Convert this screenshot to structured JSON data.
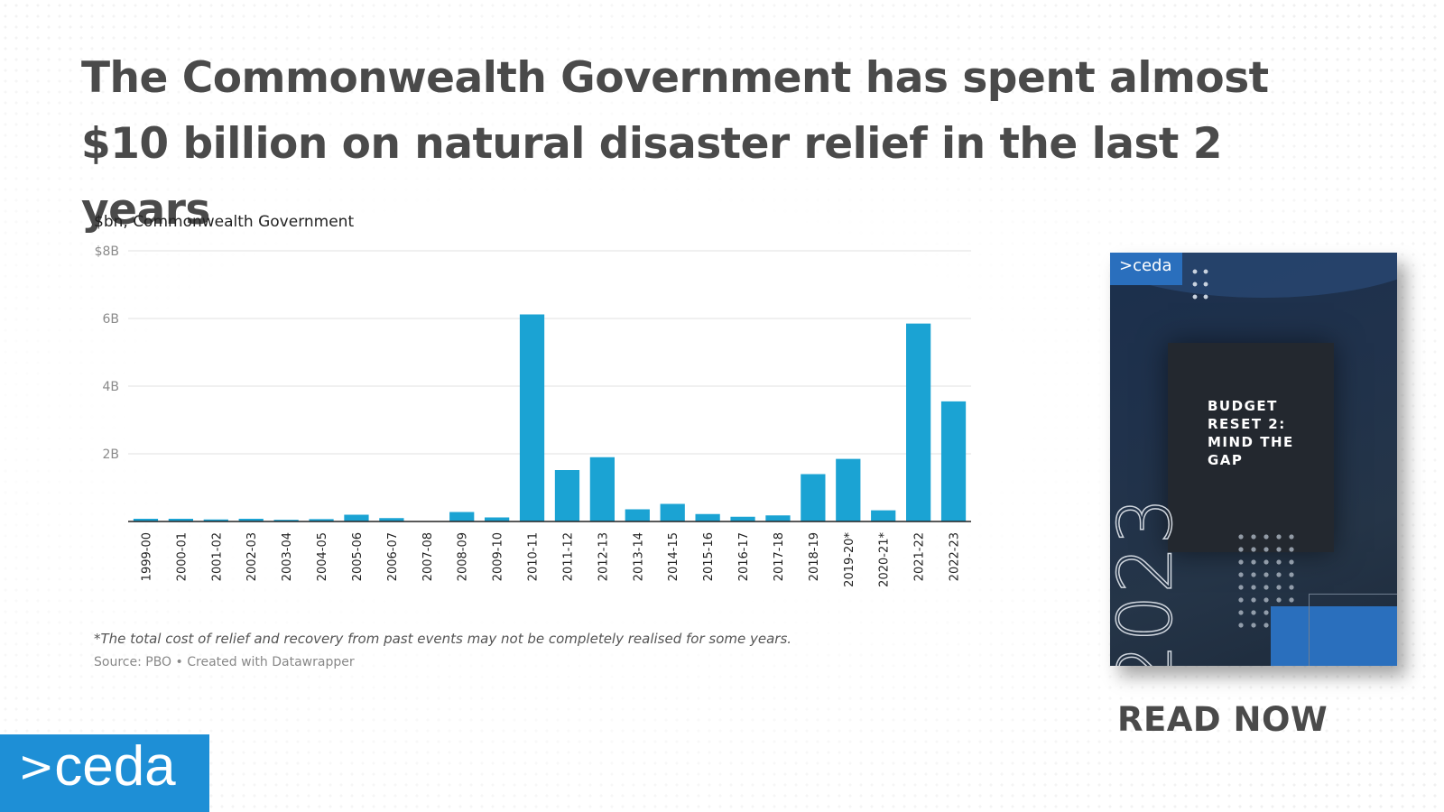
{
  "headline": {
    "line1": "The Commonwealth Government has spent almost",
    "line2": "$10 billion on natural disaster relief in the last 2 years"
  },
  "chart_data": {
    "type": "bar",
    "title": "The Commonwealth Government has spent almost $10 billion on natural disaster relief in the last 2 years",
    "subtitle": "$bn, Commonwealth Government",
    "xlabel": "",
    "ylabel": "$bn",
    "ylim": [
      0,
      8
    ],
    "yticks": [
      {
        "value": 8,
        "label": "$8B"
      },
      {
        "value": 6,
        "label": "6B"
      },
      {
        "value": 4,
        "label": "4B"
      },
      {
        "value": 2,
        "label": "2B"
      }
    ],
    "grid": true,
    "bar_color": "#1ba3d3",
    "categories": [
      "1999-00",
      "2000-01",
      "2001-02",
      "2002-03",
      "2003-04",
      "2004-05",
      "2005-06",
      "2006-07",
      "2007-08",
      "2008-09",
      "2009-10",
      "2010-11",
      "2011-12",
      "2012-13",
      "2013-14",
      "2014-15",
      "2015-16",
      "2016-17",
      "2017-18",
      "2018-19",
      "2019-20*",
      "2020-21*",
      "2021-22",
      "2022-23"
    ],
    "values": [
      0.08,
      0.08,
      0.06,
      0.08,
      0.05,
      0.07,
      0.2,
      0.1,
      0.0,
      0.28,
      0.12,
      6.12,
      1.52,
      1.9,
      0.36,
      0.52,
      0.22,
      0.14,
      0.18,
      1.4,
      1.85,
      0.33,
      5.85,
      3.55
    ],
    "note": "*The total cost of relief and recovery from past events may not be completely realised for some years.",
    "source": "Source: PBO • Created with Datawrapper"
  },
  "cover": {
    "logo": ">ceda",
    "title": "BUDGET RESET 2: MIND THE GAP",
    "year": "2023"
  },
  "cta": {
    "label": "READ NOW"
  },
  "brand": {
    "chevron": ">",
    "name": "ceda"
  },
  "colors": {
    "bar": "#1ba3d3",
    "brand": "#1e8fd6",
    "headline": "#4a4a4a",
    "cover_dark": "#1b2f4c"
  }
}
